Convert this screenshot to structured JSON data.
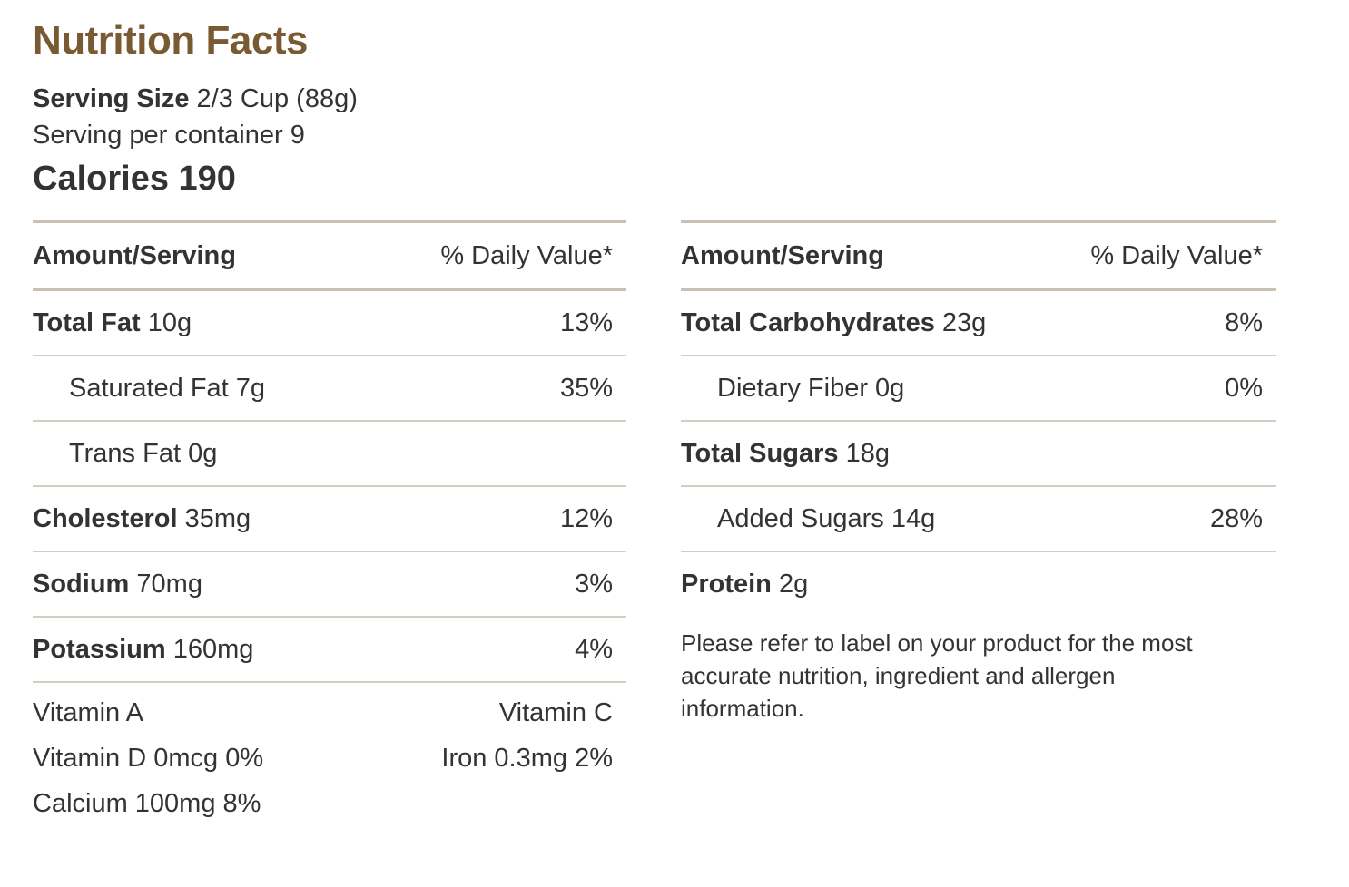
{
  "title": "Nutrition Facts",
  "serving": {
    "size_label": "Serving Size",
    "size_value": "2/3 Cup (88g)",
    "per_container": "Serving per container 9"
  },
  "calories": "Calories 190",
  "header": {
    "amount": "Amount/Serving",
    "dv": "% Daily Value*"
  },
  "left_rows": [
    {
      "name": "Total Fat",
      "amount": "10g",
      "dv": "13%"
    },
    {
      "name": "Saturated Fat 7g",
      "amount": "",
      "dv": "35%"
    },
    {
      "name": "Trans Fat 0g",
      "amount": "",
      "dv": ""
    },
    {
      "name": "Cholesterol",
      "amount": "35mg",
      "dv": "12%"
    },
    {
      "name": "Sodium",
      "amount": "70mg",
      "dv": "3%"
    },
    {
      "name": "Potassium",
      "amount": "160mg",
      "dv": "4%"
    }
  ],
  "vitamins": {
    "a": "Vitamin A",
    "c": "Vitamin C",
    "d": "Vitamin D 0mcg 0%",
    "iron": "Iron 0.3mg 2%",
    "calcium": "Calcium 100mg 8%"
  },
  "right_rows": [
    {
      "name": "Total Carbohydrates",
      "amount": "23g",
      "dv": "8%"
    },
    {
      "name": "Dietary Fiber 0g",
      "amount": "",
      "dv": "0%"
    },
    {
      "name": "Total Sugars",
      "amount": "18g",
      "dv": ""
    },
    {
      "name": "Added Sugars 14g",
      "amount": "",
      "dv": "28%"
    },
    {
      "name": "Protein",
      "amount": "2g",
      "dv": ""
    }
  ],
  "note": "Please refer to label on your product for the most accurate nutrition, ingredient and allergen information.",
  "colors": {
    "title": "#7a5a32",
    "rule": "#c9c1b3",
    "text": "#333333"
  }
}
